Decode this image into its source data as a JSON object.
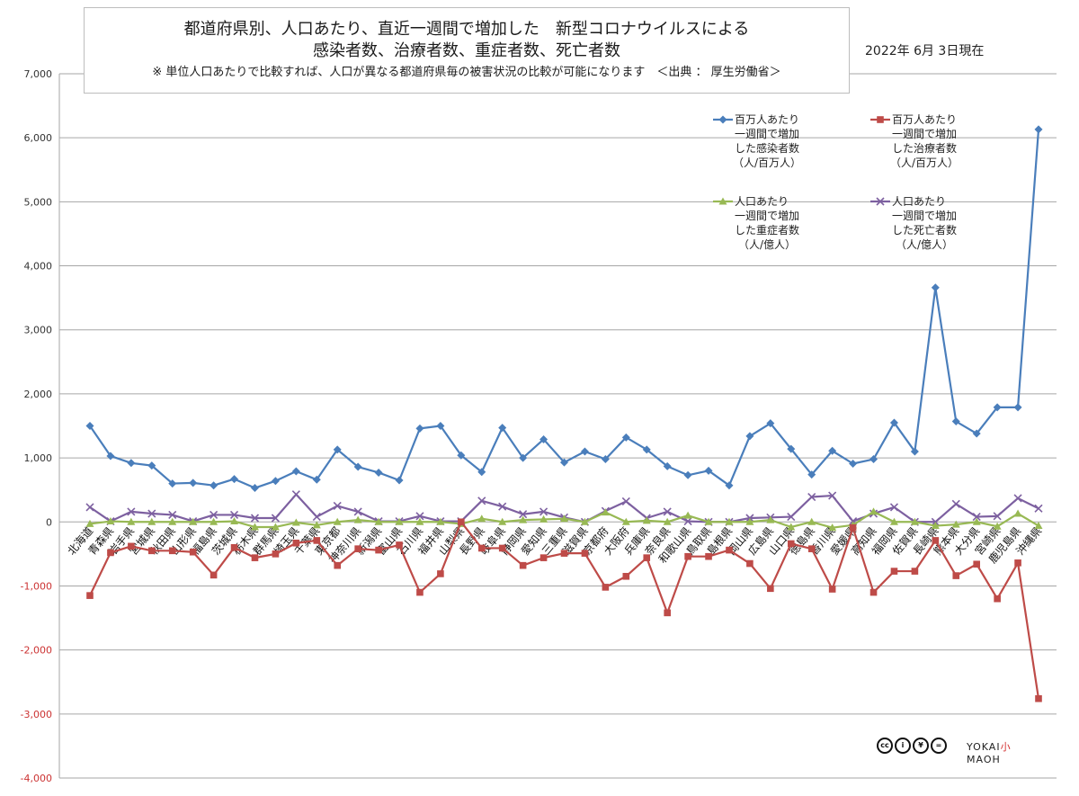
{
  "title": {
    "line1": "都道府県別、人口あたり、直近一週間で増加した　新型コロナウイルスによる",
    "line2": "感染者数、治療者数、重症者数、死亡者数",
    "note": "※ 単位人口あたりで比較すれば、人口が異なる都道府県毎の被害状況の比較が可能になります　＜出典 ： 厚生労働省＞"
  },
  "date_label": "2022年 6月 3日現在",
  "logo": {
    "cc": [
      "cc",
      "i",
      "¥",
      "="
    ],
    "text_prefix": "YOKAI",
    "text_red": "小",
    "text_suffix": "MAOH"
  },
  "colors": {
    "series1": "#4a7ebb",
    "series2": "#be4b48",
    "series3": "#98b954",
    "series4": "#7d60a0",
    "grid": "#a6a6a6",
    "axis_text": "#333333"
  },
  "chart_data": {
    "type": "line",
    "ylim": [
      -4000,
      7000
    ],
    "yticks": [
      7000,
      6000,
      5000,
      4000,
      3000,
      2000,
      1000,
      0,
      -1000,
      -2000,
      -3000,
      -4000
    ],
    "ytick_labels": [
      "7,000",
      "6,000",
      "5,000",
      "4,000",
      "3,000",
      "2,000",
      "1,000",
      "0",
      "-1,000",
      "-2,000",
      "-3,000",
      "-4,000"
    ],
    "grid": true,
    "legend_position": "top-right",
    "categories": [
      "北海道",
      "青森県",
      "岩手県",
      "宮城県",
      "秋田県",
      "山形県",
      "福島県",
      "茨城県",
      "栃木県",
      "群馬県",
      "埼玉県",
      "千葉県",
      "東京都",
      "神奈川県",
      "新潟県",
      "富山県",
      "石川県",
      "福井県",
      "山梨県",
      "長野県",
      "岐阜県",
      "静岡県",
      "愛知県",
      "三重県",
      "滋賀県",
      "京都府",
      "大阪府",
      "兵庫県",
      "奈良県",
      "和歌山県",
      "鳥取県",
      "島根県",
      "岡山県",
      "広島県",
      "山口県",
      "徳島県",
      "香川県",
      "愛媛県",
      "高知県",
      "福岡県",
      "佐賀県",
      "長崎県",
      "熊本県",
      "大分県",
      "宮崎県",
      "鹿児島県",
      "沖縄県"
    ],
    "series": [
      {
        "name": "百万人あたり一週間で増加した感染者数（人/百万人）",
        "legend_lines": [
          "百万人あたり",
          "一週間で増加",
          "した感染者数",
          "（人/百万人）"
        ],
        "marker": "diamond",
        "values": [
          1500,
          1030,
          920,
          880,
          600,
          610,
          570,
          670,
          530,
          640,
          790,
          660,
          1130,
          860,
          770,
          650,
          1460,
          1500,
          1040,
          780,
          1470,
          1000,
          1290,
          930,
          1100,
          980,
          1320,
          1130,
          870,
          730,
          800,
          570,
          1340,
          1540,
          1140,
          740,
          1110,
          910,
          980,
          1550,
          1100,
          3660,
          1570,
          1380,
          1790,
          1790,
          6130
        ]
      },
      {
        "name": "百万人あたり一週間で増加した治療者数（人/百万人）",
        "legend_lines": [
          "百万人あたり",
          "一週間で増加",
          "した治療者数",
          "（人/百万人）"
        ],
        "marker": "square",
        "values": [
          -1150,
          -480,
          -380,
          -450,
          -450,
          -470,
          -830,
          -400,
          -560,
          -500,
          -330,
          -290,
          -680,
          -420,
          -440,
          -360,
          -1100,
          -810,
          0,
          -410,
          -410,
          -680,
          -560,
          -490,
          -490,
          -1020,
          -850,
          -560,
          -1420,
          -540,
          -540,
          -440,
          -650,
          -1040,
          -340,
          -420,
          -1050,
          -90,
          -1100,
          -770,
          -770,
          -290,
          -840,
          -660,
          -1200,
          -640,
          -2760
        ]
      },
      {
        "name": "人口あたり一週間で増加した重症者数（人/億人）",
        "legend_lines": [
          "人口あたり",
          "一週間で増加",
          "した重症者数",
          "（人/億人）"
        ],
        "marker": "triangle",
        "values": [
          -30,
          10,
          0,
          0,
          0,
          0,
          0,
          10,
          -80,
          -80,
          -10,
          -50,
          0,
          30,
          0,
          0,
          0,
          0,
          -30,
          50,
          0,
          30,
          40,
          50,
          0,
          150,
          0,
          20,
          0,
          100,
          0,
          0,
          0,
          30,
          -80,
          0,
          -90,
          -50,
          160,
          0,
          0,
          -60,
          -40,
          0,
          -70,
          130,
          -60
        ]
      },
      {
        "name": "人口あたり一週間で増加した死亡者数（人/億人）",
        "legend_lines": [
          "人口あたり",
          "一週間で増加",
          "した死亡者数",
          "（人/億人）"
        ],
        "marker": "x",
        "values": [
          230,
          10,
          160,
          130,
          110,
          10,
          110,
          110,
          60,
          60,
          430,
          80,
          250,
          160,
          10,
          10,
          90,
          10,
          10,
          330,
          240,
          120,
          160,
          70,
          0,
          170,
          320,
          60,
          160,
          10,
          0,
          0,
          60,
          70,
          80,
          390,
          410,
          10,
          130,
          230,
          0,
          0,
          280,
          80,
          90,
          370,
          210
        ]
      }
    ]
  }
}
